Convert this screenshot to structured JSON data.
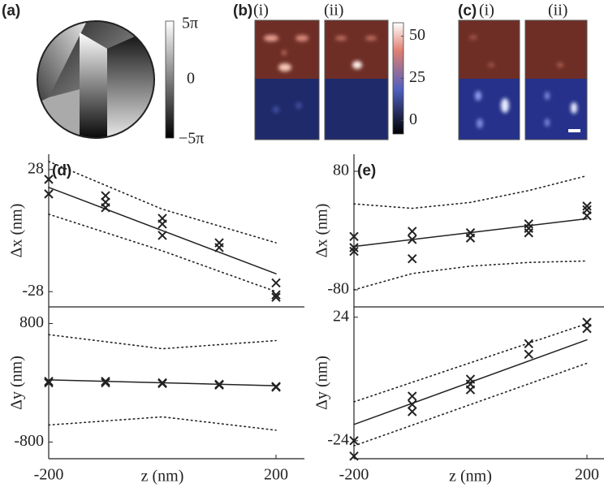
{
  "panel_a": {
    "label": "(a)",
    "colorbar_ticks": [
      "5π",
      "0",
      "−5π"
    ]
  },
  "panel_b": {
    "label": "(b)",
    "sublabels": [
      "(i)",
      "(ii)"
    ],
    "colorbar_lim": [
      -8,
      58
    ],
    "colorbar_ticks": [
      50,
      25,
      0
    ]
  },
  "panel_c": {
    "label": "(c)",
    "sublabels": [
      "(i)",
      "(ii)"
    ]
  },
  "chart_data": [
    {
      "type": "scatter",
      "panel_label": "(d)",
      "ylabel": "Δx (nm)",
      "xlim": [
        -200,
        200
      ],
      "ylim": [
        -35,
        35
      ],
      "yticks": [
        28,
        -28
      ],
      "series": [
        {
          "marker": "x",
          "color": "#222222",
          "x": [
            -200,
            -200,
            -100,
            -100,
            -100,
            0,
            0,
            0,
            100,
            100,
            200,
            200,
            200
          ],
          "values": [
            23.5,
            16.8,
            16,
            13,
            10.5,
            5.6,
            3,
            -2.2,
            -5.6,
            -7.8,
            -24,
            -29.5,
            -30.6
          ]
        },
        {
          "marker": "line",
          "linestyle": "solid",
          "color": "#222222",
          "x": [
            -200,
            200
          ],
          "values": [
            19.8,
            -19.8
          ]
        },
        {
          "marker": "line",
          "linestyle": "dotted",
          "color": "#222222",
          "x": [
            -200,
            0,
            200
          ],
          "values": [
            31.7,
            9.8,
            -5.6
          ]
        },
        {
          "marker": "line",
          "linestyle": "dotted",
          "color": "#222222",
          "x": [
            -200,
            0,
            200
          ],
          "values": [
            7.5,
            -9.3,
            -28
          ]
        }
      ]
    },
    {
      "type": "scatter",
      "ylabel": "Δy (nm)",
      "xlabel": "z (nm)",
      "xlim": [
        -200,
        200
      ],
      "xticks": [
        -200,
        200
      ],
      "ylim": [
        -1025,
        1025
      ],
      "yticks": [
        800,
        -800
      ],
      "series": [
        {
          "marker": "x",
          "color": "#222222",
          "x": [
            -200,
            -200,
            -100,
            -100,
            0,
            0,
            100,
            100,
            200,
            200
          ],
          "values": [
            0,
            20,
            20,
            0,
            0,
            -10,
            -20,
            -30,
            -50,
            -60
          ]
        },
        {
          "marker": "line",
          "linestyle": "solid",
          "color": "#222222",
          "x": [
            -200,
            200
          ],
          "values": [
            40,
            -40
          ]
        },
        {
          "marker": "line",
          "linestyle": "dotted",
          "color": "#222222",
          "x": [
            -200,
            0,
            200
          ],
          "values": [
            650,
            460,
            570
          ]
        },
        {
          "marker": "line",
          "linestyle": "dotted",
          "color": "#222222",
          "x": [
            -200,
            0,
            200
          ],
          "values": [
            -570,
            -460,
            -640
          ]
        }
      ]
    },
    {
      "type": "scatter",
      "panel_label": "(e)",
      "ylabel": "Δx (nm)",
      "xlim": [
        -200,
        200
      ],
      "ylim": [
        -103,
        103
      ],
      "yticks": [
        80,
        -80
      ],
      "series": [
        {
          "marker": "x",
          "color": "#222222",
          "x": [
            -200,
            -200,
            -200,
            -100,
            -100,
            -100,
            0,
            0,
            100,
            100,
            100,
            200,
            200,
            200
          ],
          "values": [
            -8,
            -23,
            -28,
            -1,
            -12,
            -38,
            -3,
            -10,
            9,
            3,
            -3,
            33,
            28,
            20
          ]
        },
        {
          "marker": "line",
          "linestyle": "solid",
          "color": "#222222",
          "x": [
            -200,
            200
          ],
          "values": [
            -21.5,
            16
          ]
        },
        {
          "marker": "line",
          "linestyle": "dotted",
          "color": "#222222",
          "x": [
            -200,
            -100,
            0,
            100,
            200
          ],
          "values": [
            36,
            30,
            38,
            54,
            74
          ]
        },
        {
          "marker": "line",
          "linestyle": "dotted",
          "color": "#222222",
          "x": [
            -200,
            -100,
            0,
            100,
            200
          ],
          "values": [
            -80,
            -58,
            -48,
            -43,
            -41
          ]
        }
      ]
    },
    {
      "type": "scatter",
      "ylabel": "Δy (nm)",
      "xlabel": "z (nm)",
      "xlim": [
        -200,
        200
      ],
      "xticks": [
        -200,
        200
      ],
      "ylim": [
        -31,
        28
      ],
      "yticks": [
        24,
        -24
      ],
      "series": [
        {
          "marker": "x",
          "color": "#222222",
          "x": [
            -200,
            -200,
            -100,
            -100,
            -100,
            0,
            0,
            0,
            100,
            100,
            200,
            200
          ],
          "values": [
            -24,
            -30,
            -6.7,
            -9.9,
            -12.7,
            -0.1,
            -2,
            -4.2,
            13.7,
            9.6,
            22,
            19.6
          ]
        },
        {
          "marker": "line",
          "linestyle": "solid",
          "color": "#222222",
          "x": [
            -200,
            200
          ],
          "values": [
            -17.7,
            15.2
          ]
        },
        {
          "marker": "line",
          "linestyle": "dotted",
          "color": "#222222",
          "x": [
            -200,
            200
          ],
          "values": [
            -8.9,
            21.5
          ]
        },
        {
          "marker": "line",
          "linestyle": "dotted",
          "color": "#222222",
          "x": [
            -200,
            200
          ],
          "values": [
            -26,
            6.1
          ]
        }
      ]
    }
  ]
}
